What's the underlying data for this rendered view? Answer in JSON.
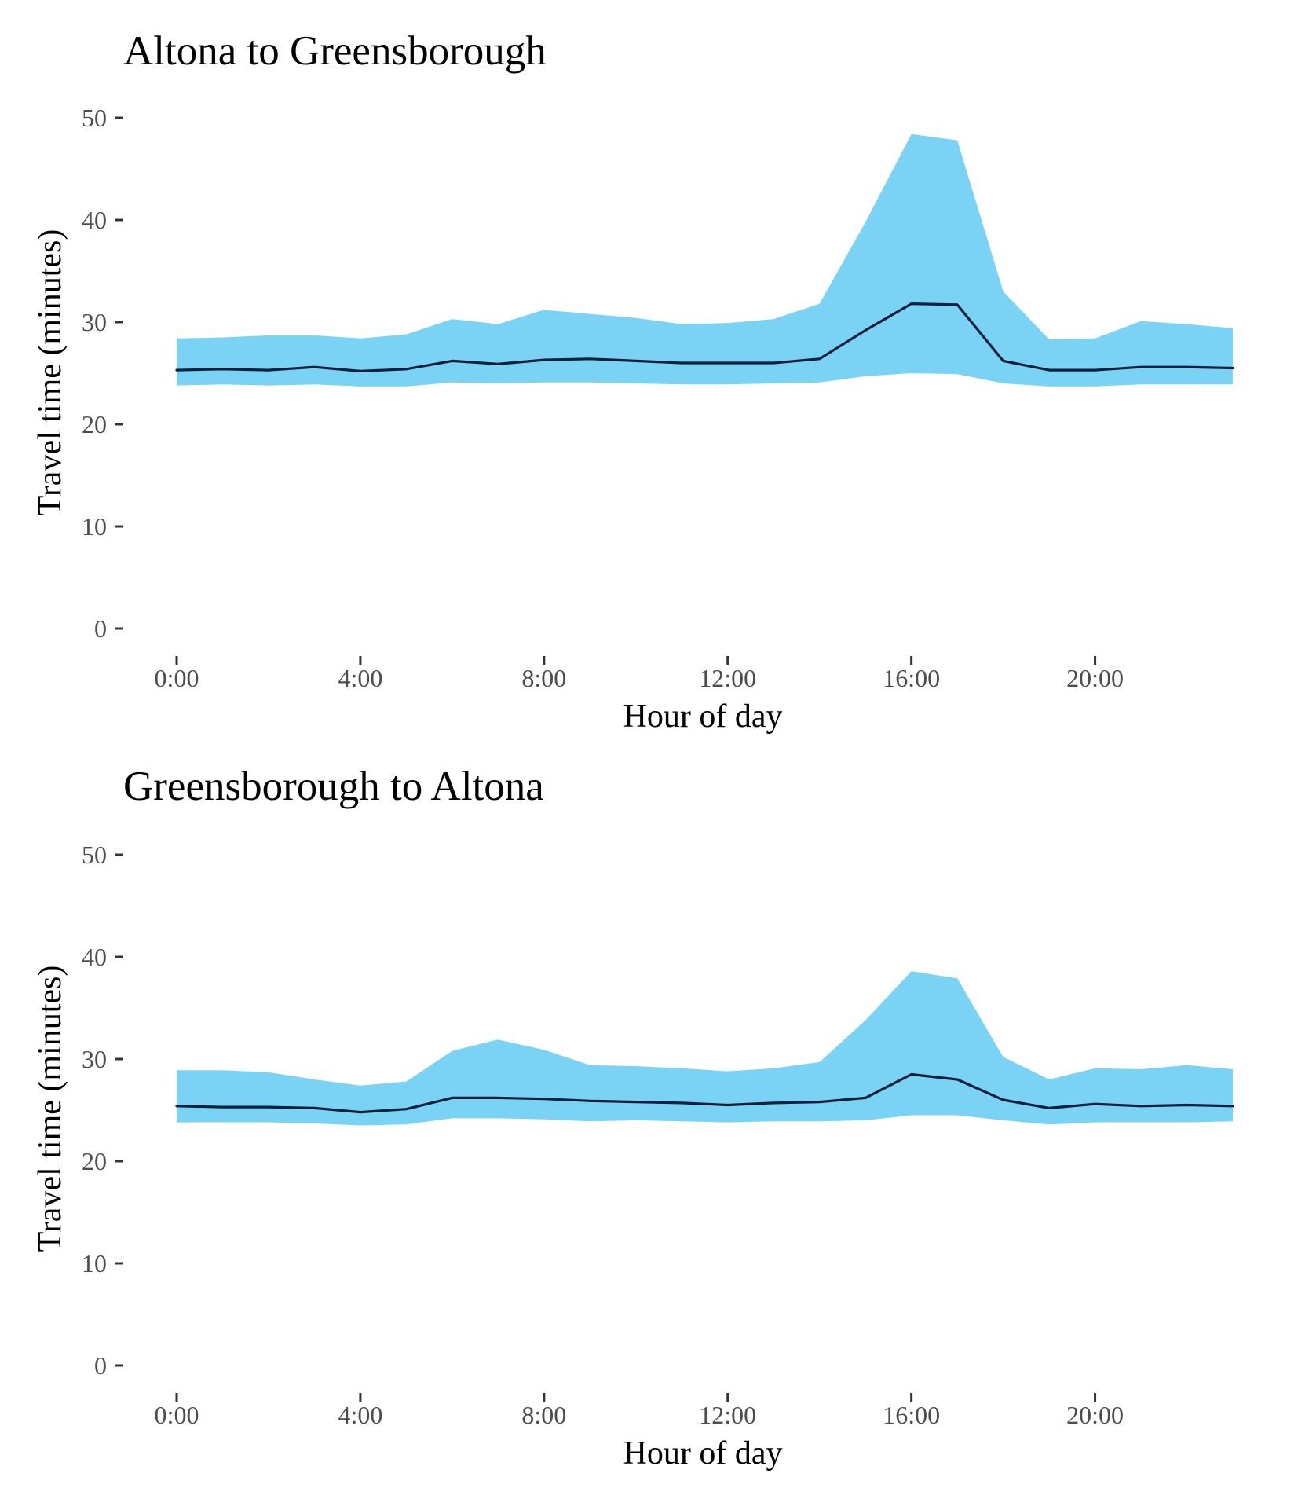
{
  "chart_data": [
    {
      "type": "area",
      "title": "Altona to Greensborough",
      "xlabel": "Hour of day",
      "ylabel": "Travel time (minutes)",
      "xlim": [
        0,
        23
      ],
      "ylim": [
        0,
        50
      ],
      "x_ticks": [
        0,
        4,
        8,
        12,
        16,
        20
      ],
      "x_tick_labels": [
        "0:00",
        "4:00",
        "8:00",
        "12:00",
        "16:00",
        "20:00"
      ],
      "y_ticks": [
        0,
        10,
        20,
        30,
        40,
        50
      ],
      "y_tick_labels": [
        "0",
        "10",
        "20",
        "30",
        "40",
        "50"
      ],
      "grid": false,
      "x": [
        0,
        1,
        2,
        3,
        4,
        5,
        6,
        7,
        8,
        9,
        10,
        11,
        12,
        13,
        14,
        15,
        16,
        17,
        18,
        19,
        20,
        21,
        22,
        23
      ],
      "series": [
        {
          "name": "upper",
          "color": "#7ad2f4",
          "values": [
            28.4,
            28.5,
            28.7,
            28.7,
            28.4,
            28.8,
            30.3,
            29.8,
            31.2,
            30.8,
            30.4,
            29.8,
            29.9,
            30.3,
            31.8,
            39.8,
            48.4,
            47.8,
            33.0,
            28.3,
            28.4,
            30.1,
            29.8,
            29.4
          ]
        },
        {
          "name": "median",
          "color": "#0d1f3c",
          "values": [
            25.3,
            25.4,
            25.3,
            25.6,
            25.2,
            25.4,
            26.2,
            25.9,
            26.3,
            26.4,
            26.2,
            26.0,
            26.0,
            26.0,
            26.4,
            29.2,
            31.8,
            31.7,
            26.2,
            25.3,
            25.3,
            25.6,
            25.6,
            25.5
          ]
        },
        {
          "name": "lower",
          "color": "#7ad2f4",
          "values": [
            23.8,
            23.9,
            23.8,
            23.9,
            23.7,
            23.7,
            24.1,
            24.0,
            24.1,
            24.1,
            24.0,
            23.9,
            23.9,
            24.0,
            24.1,
            24.7,
            25.0,
            24.9,
            24.0,
            23.7,
            23.7,
            23.9,
            23.9,
            23.9
          ]
        }
      ]
    },
    {
      "type": "area",
      "title": "Greensborough to Altona",
      "xlabel": "Hour of day",
      "ylabel": "Travel time (minutes)",
      "xlim": [
        0,
        23
      ],
      "ylim": [
        0,
        50
      ],
      "x_ticks": [
        0,
        4,
        8,
        12,
        16,
        20
      ],
      "x_tick_labels": [
        "0:00",
        "4:00",
        "8:00",
        "12:00",
        "16:00",
        "20:00"
      ],
      "y_ticks": [
        0,
        10,
        20,
        30,
        40,
        50
      ],
      "y_tick_labels": [
        "0",
        "10",
        "20",
        "30",
        "40",
        "50"
      ],
      "grid": false,
      "x": [
        0,
        1,
        2,
        3,
        4,
        5,
        6,
        7,
        8,
        9,
        10,
        11,
        12,
        13,
        14,
        15,
        16,
        17,
        18,
        19,
        20,
        21,
        22,
        23
      ],
      "series": [
        {
          "name": "upper",
          "color": "#7ad2f4",
          "values": [
            28.9,
            28.9,
            28.7,
            28.0,
            27.4,
            27.8,
            30.8,
            31.9,
            30.9,
            29.4,
            29.3,
            29.1,
            28.8,
            29.1,
            29.7,
            33.8,
            38.6,
            37.9,
            30.2,
            28.0,
            29.1,
            29.0,
            29.4,
            29.0
          ]
        },
        {
          "name": "median",
          "color": "#0d1f3c",
          "values": [
            25.4,
            25.3,
            25.3,
            25.2,
            24.8,
            25.1,
            26.2,
            26.2,
            26.1,
            25.9,
            25.8,
            25.7,
            25.5,
            25.7,
            25.8,
            26.2,
            28.5,
            28.0,
            26.0,
            25.2,
            25.6,
            25.4,
            25.5,
            25.4
          ]
        },
        {
          "name": "lower",
          "color": "#7ad2f4",
          "values": [
            23.8,
            23.8,
            23.8,
            23.7,
            23.5,
            23.6,
            24.2,
            24.2,
            24.1,
            23.9,
            24.0,
            23.9,
            23.8,
            23.9,
            23.9,
            24.0,
            24.5,
            24.5,
            24.0,
            23.6,
            23.8,
            23.8,
            23.8,
            23.9
          ]
        }
      ]
    }
  ]
}
